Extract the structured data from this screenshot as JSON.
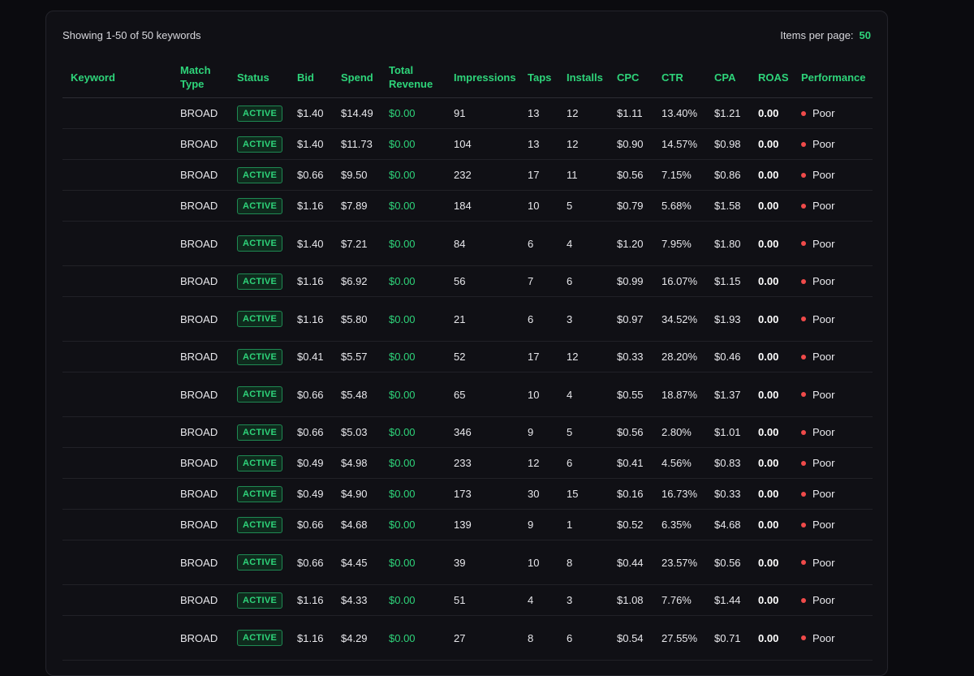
{
  "header": {
    "showing_text": "Showing 1-50 of 50 keywords",
    "items_per_page_label": "Items per page:",
    "items_per_page_value": "50"
  },
  "colors": {
    "accent": "#2ed47a",
    "poor": "#f04a4a",
    "background": "#0b0b0f"
  },
  "table": {
    "columns": [
      "Keyword",
      "Match Type",
      "Status",
      "Bid",
      "Spend",
      "Total Revenue",
      "Impressions",
      "Taps",
      "Installs",
      "CPC",
      "CTR",
      "CPA",
      "ROAS",
      "Performance"
    ],
    "rows": [
      {
        "keyword": "",
        "match": "BROAD",
        "status": "ACTIVE",
        "bid": "$1.40",
        "spend": "$14.49",
        "revenue": "$0.00",
        "impressions": "91",
        "taps": "13",
        "installs": "12",
        "cpc": "$1.11",
        "ctr": "13.40%",
        "cpa": "$1.21",
        "roas": "0.00",
        "performance": "Poor",
        "tall": false
      },
      {
        "keyword": "",
        "match": "BROAD",
        "status": "ACTIVE",
        "bid": "$1.40",
        "spend": "$11.73",
        "revenue": "$0.00",
        "impressions": "104",
        "taps": "13",
        "installs": "12",
        "cpc": "$0.90",
        "ctr": "14.57%",
        "cpa": "$0.98",
        "roas": "0.00",
        "performance": "Poor",
        "tall": false
      },
      {
        "keyword": "",
        "match": "BROAD",
        "status": "ACTIVE",
        "bid": "$0.66",
        "spend": "$9.50",
        "revenue": "$0.00",
        "impressions": "232",
        "taps": "17",
        "installs": "11",
        "cpc": "$0.56",
        "ctr": "7.15%",
        "cpa": "$0.86",
        "roas": "0.00",
        "performance": "Poor",
        "tall": false
      },
      {
        "keyword": "",
        "match": "BROAD",
        "status": "ACTIVE",
        "bid": "$1.16",
        "spend": "$7.89",
        "revenue": "$0.00",
        "impressions": "184",
        "taps": "10",
        "installs": "5",
        "cpc": "$0.79",
        "ctr": "5.68%",
        "cpa": "$1.58",
        "roas": "0.00",
        "performance": "Poor",
        "tall": false
      },
      {
        "keyword": "",
        "match": "BROAD",
        "status": "ACTIVE",
        "bid": "$1.40",
        "spend": "$7.21",
        "revenue": "$0.00",
        "impressions": "84",
        "taps": "6",
        "installs": "4",
        "cpc": "$1.20",
        "ctr": "7.95%",
        "cpa": "$1.80",
        "roas": "0.00",
        "performance": "Poor",
        "tall": true
      },
      {
        "keyword": "",
        "match": "BROAD",
        "status": "ACTIVE",
        "bid": "$1.16",
        "spend": "$6.92",
        "revenue": "$0.00",
        "impressions": "56",
        "taps": "7",
        "installs": "6",
        "cpc": "$0.99",
        "ctr": "16.07%",
        "cpa": "$1.15",
        "roas": "0.00",
        "performance": "Poor",
        "tall": false
      },
      {
        "keyword": "",
        "match": "BROAD",
        "status": "ACTIVE",
        "bid": "$1.16",
        "spend": "$5.80",
        "revenue": "$0.00",
        "impressions": "21",
        "taps": "6",
        "installs": "3",
        "cpc": "$0.97",
        "ctr": "34.52%",
        "cpa": "$1.93",
        "roas": "0.00",
        "performance": "Poor",
        "tall": true
      },
      {
        "keyword": "",
        "match": "BROAD",
        "status": "ACTIVE",
        "bid": "$0.41",
        "spend": "$5.57",
        "revenue": "$0.00",
        "impressions": "52",
        "taps": "17",
        "installs": "12",
        "cpc": "$0.33",
        "ctr": "28.20%",
        "cpa": "$0.46",
        "roas": "0.00",
        "performance": "Poor",
        "tall": false
      },
      {
        "keyword": "",
        "match": "BROAD",
        "status": "ACTIVE",
        "bid": "$0.66",
        "spend": "$5.48",
        "revenue": "$0.00",
        "impressions": "65",
        "taps": "10",
        "installs": "4",
        "cpc": "$0.55",
        "ctr": "18.87%",
        "cpa": "$1.37",
        "roas": "0.00",
        "performance": "Poor",
        "tall": true
      },
      {
        "keyword": "",
        "match": "BROAD",
        "status": "ACTIVE",
        "bid": "$0.66",
        "spend": "$5.03",
        "revenue": "$0.00",
        "impressions": "346",
        "taps": "9",
        "installs": "5",
        "cpc": "$0.56",
        "ctr": "2.80%",
        "cpa": "$1.01",
        "roas": "0.00",
        "performance": "Poor",
        "tall": false
      },
      {
        "keyword": "",
        "match": "BROAD",
        "status": "ACTIVE",
        "bid": "$0.49",
        "spend": "$4.98",
        "revenue": "$0.00",
        "impressions": "233",
        "taps": "12",
        "installs": "6",
        "cpc": "$0.41",
        "ctr": "4.56%",
        "cpa": "$0.83",
        "roas": "0.00",
        "performance": "Poor",
        "tall": false
      },
      {
        "keyword": "",
        "match": "BROAD",
        "status": "ACTIVE",
        "bid": "$0.49",
        "spend": "$4.90",
        "revenue": "$0.00",
        "impressions": "173",
        "taps": "30",
        "installs": "15",
        "cpc": "$0.16",
        "ctr": "16.73%",
        "cpa": "$0.33",
        "roas": "0.00",
        "performance": "Poor",
        "tall": false
      },
      {
        "keyword": "",
        "match": "BROAD",
        "status": "ACTIVE",
        "bid": "$0.66",
        "spend": "$4.68",
        "revenue": "$0.00",
        "impressions": "139",
        "taps": "9",
        "installs": "1",
        "cpc": "$0.52",
        "ctr": "6.35%",
        "cpa": "$4.68",
        "roas": "0.00",
        "performance": "Poor",
        "tall": false
      },
      {
        "keyword": "",
        "match": "BROAD",
        "status": "ACTIVE",
        "bid": "$0.66",
        "spend": "$4.45",
        "revenue": "$0.00",
        "impressions": "39",
        "taps": "10",
        "installs": "8",
        "cpc": "$0.44",
        "ctr": "23.57%",
        "cpa": "$0.56",
        "roas": "0.00",
        "performance": "Poor",
        "tall": true
      },
      {
        "keyword": "",
        "match": "BROAD",
        "status": "ACTIVE",
        "bid": "$1.16",
        "spend": "$4.33",
        "revenue": "$0.00",
        "impressions": "51",
        "taps": "4",
        "installs": "3",
        "cpc": "$1.08",
        "ctr": "7.76%",
        "cpa": "$1.44",
        "roas": "0.00",
        "performance": "Poor",
        "tall": false
      },
      {
        "keyword": "",
        "match": "BROAD",
        "status": "ACTIVE",
        "bid": "$1.16",
        "spend": "$4.29",
        "revenue": "$0.00",
        "impressions": "27",
        "taps": "8",
        "installs": "6",
        "cpc": "$0.54",
        "ctr": "27.55%",
        "cpa": "$0.71",
        "roas": "0.00",
        "performance": "Poor",
        "tall": true
      }
    ]
  }
}
